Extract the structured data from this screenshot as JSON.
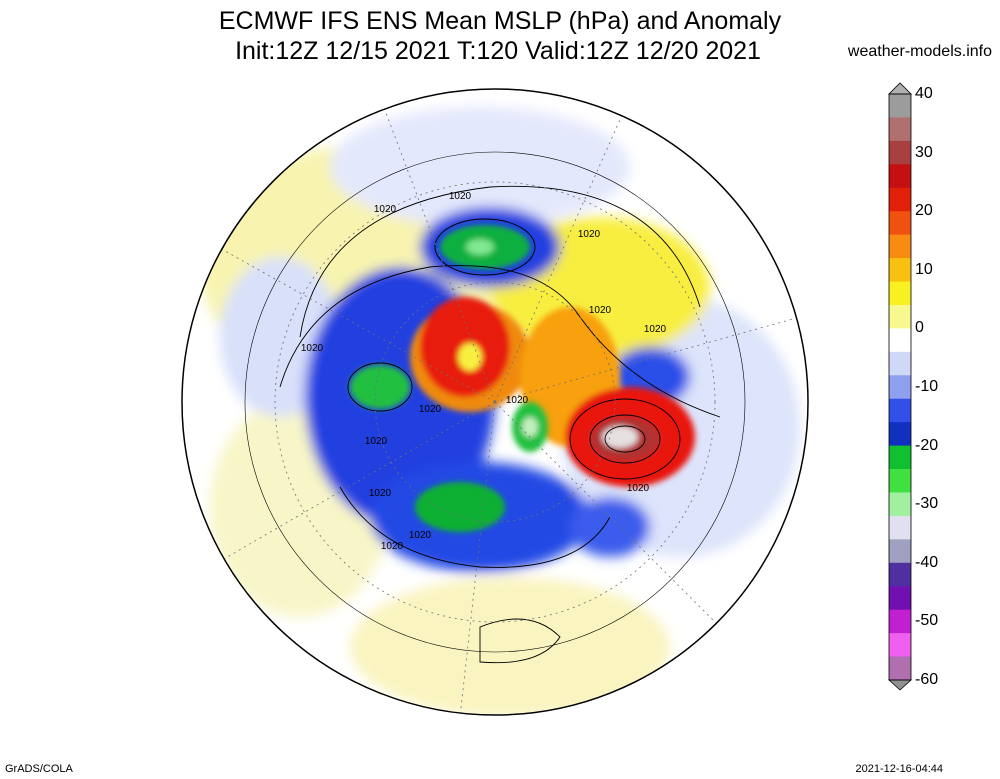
{
  "header": {
    "title_line1": "ECMWF IFS ENS Mean MSLP (hPa) and Anomaly",
    "title_line2": "Init:12Z 12/15 2021  T:120 Valid:12Z 12/20 2021",
    "site": "weather-models.info"
  },
  "footer": {
    "software": "GrADS/COLA",
    "timestamp": "2021-12-16-04:44"
  },
  "colorbar": {
    "labels": [
      "40",
      "30",
      "20",
      "10",
      "0",
      "-10",
      "-20",
      "-30",
      "-40",
      "-50",
      "-60"
    ],
    "colors": [
      "#9c9c9c",
      "#b07070",
      "#a84040",
      "#c41010",
      "#e02008",
      "#f05010",
      "#f88c10",
      "#f8c010",
      "#f8f020",
      "#f8f890",
      "#ffffff",
      "#d0d8f8",
      "#90a0f0",
      "#3050e8",
      "#1030c0",
      "#10c030",
      "#40e040",
      "#a0f0a0",
      "#e0e0f0",
      "#a0a0c0",
      "#5030a0",
      "#7010b0",
      "#c020d0",
      "#f060f0",
      "#b070b0"
    ]
  },
  "map": {
    "isobar_label": "1020"
  }
}
